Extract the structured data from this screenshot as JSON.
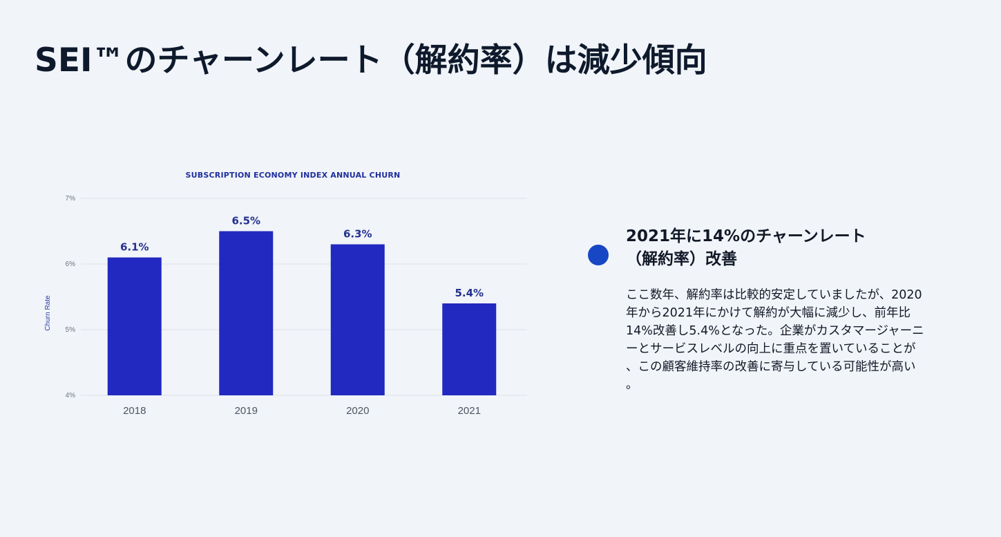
{
  "page": {
    "title": "SEI™のチャーンレート（解約率）は減少傾向"
  },
  "chart_data": {
    "type": "bar",
    "title": "SUBSCRIPTION ECONOMY INDEX ANNUAL CHURN",
    "categories": [
      "2018",
      "2019",
      "2020",
      "2021"
    ],
    "values": [
      6.1,
      6.5,
      6.3,
      5.4
    ],
    "data_labels": [
      "6.1%",
      "6.5%",
      "6.3%",
      "5.4%"
    ],
    "xlabel": "",
    "ylabel": "Churn Rate",
    "ylim": [
      4,
      7
    ],
    "yticks": [
      4,
      5,
      6,
      7
    ],
    "ytick_labels": [
      "4%",
      "5%",
      "6%",
      "7%"
    ],
    "grid": true,
    "bar_color": "#2129c0"
  },
  "side": {
    "heading_lines": [
      "2021年に14%のチャーンレート",
      "（解約率）改善"
    ],
    "body_lines": [
      "ここ数年、解約率は比較的安定していましたが、2020",
      "年から2021年にかけて解約が大幅に減少し、前年比",
      "14%改善し5.4%となった。企業がカスタマージャーニ",
      "ーとサービスレベルの向上に重点を置いていることが",
      "、この顧客維持率の改善に寄与している可能性が高い",
      "。"
    ]
  },
  "colors": {
    "background": "#f1f4f8",
    "accent": "#1747c4",
    "bar": "#2129c0"
  }
}
